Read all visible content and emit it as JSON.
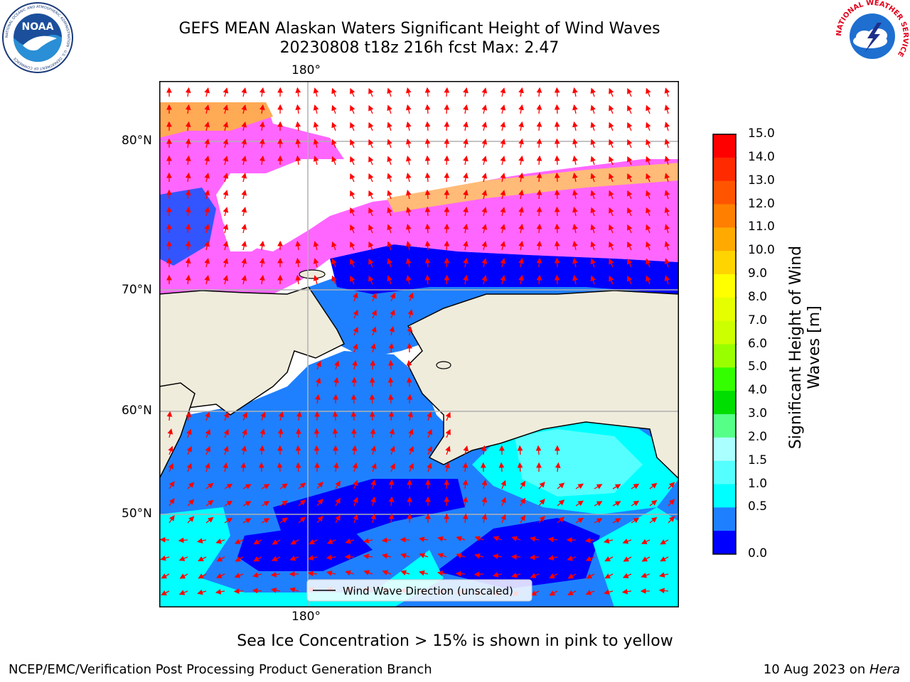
{
  "header": {
    "title_line1": "GEFS MEAN Alaskan Waters Significant Height of Wind Waves",
    "title_line2": "20230808 t18z 216h fcst   Max: 2.47",
    "noaa_logo_text": "NOAA",
    "noaa_ring_text": "NATIONAL OCEANIC AND ATMOSPHERIC ADMINISTRATION · U.S. DEPARTMENT OF COMMERCE",
    "nws_ring_text": "NATIONAL WEATHER SERVICE"
  },
  "map": {
    "lon_label_top": "180°",
    "lon_label_bottom": "180°",
    "lat_labels": [
      "80°N",
      "70°N",
      "60°N",
      "50°N"
    ],
    "legend": "Wind Wave Direction (unscaled)",
    "colors": {
      "land": "#efecdc",
      "ocean_low": "#0000ff",
      "ocean_mid": "#1e80ff",
      "ocean_high": "#00ffff",
      "ice": "#ff66ff",
      "arrows": "#ff0000"
    }
  },
  "colorbar": {
    "label": "Significant Height of Wind Waves [m]",
    "label_line1": "Significant Height of Wind",
    "label_line2": "Waves [m]",
    "ticks": [
      "15.0",
      "14.0",
      "13.0",
      "12.0",
      "11.0",
      "10.0",
      "9.0",
      "8.0",
      "7.0",
      "6.0",
      "5.0",
      "4.0",
      "3.0",
      "2.0",
      "1.5",
      "1.0",
      "0.5",
      "0.0"
    ],
    "colors_top_to_bottom": [
      "#ff0000",
      "#ff2a00",
      "#ff5500",
      "#ff7f00",
      "#ffaa00",
      "#ffd400",
      "#ffff00",
      "#e5ff00",
      "#ccff00",
      "#99ff00",
      "#33ff00",
      "#00dd00",
      "#55ff88",
      "#aaffff",
      "#55ffff",
      "#00ffff",
      "#1e80ff",
      "#0000ff"
    ]
  },
  "footer": {
    "ice_note": "Sea Ice Concentration > 15% is shown in pink to yellow",
    "left": "NCEP/EMC/Verification Post Processing Product Generation Branch",
    "right_prefix": "10 Aug 2023 on ",
    "right_italic": "Hera"
  }
}
